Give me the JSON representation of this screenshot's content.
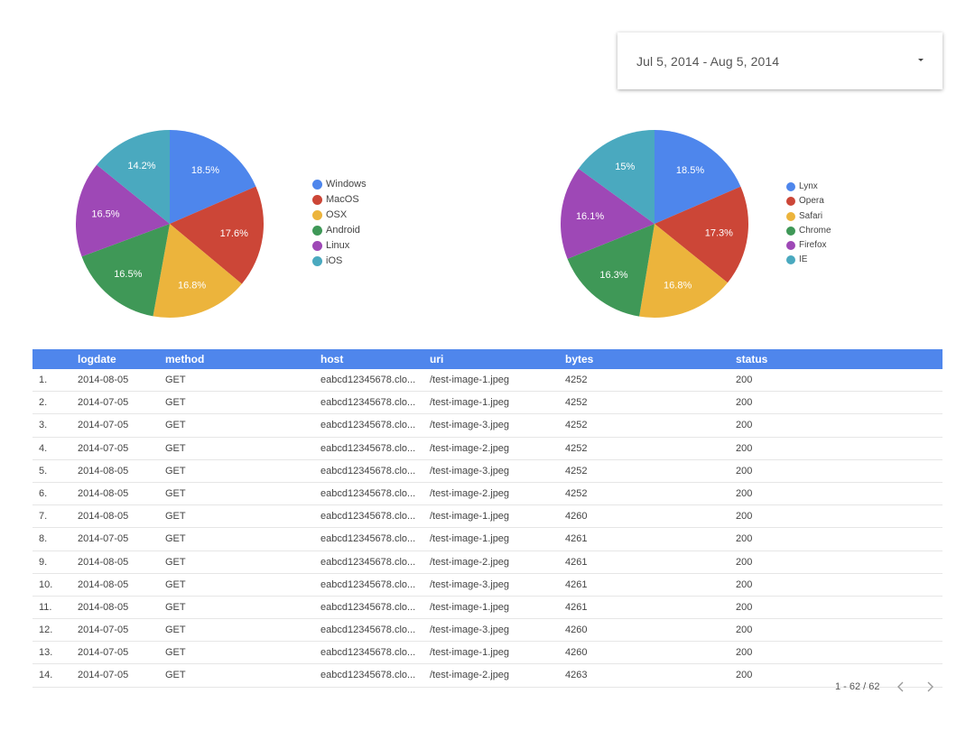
{
  "date_range": {
    "label": "Jul 5, 2014 - Aug 5, 2014"
  },
  "chart_data": [
    {
      "type": "pie",
      "slices": [
        {
          "name": "Windows",
          "value": 18.5,
          "label": "18.5%",
          "color": "#4e86ec"
        },
        {
          "name": "MacOS",
          "value": 17.6,
          "label": "17.6%",
          "color": "#cc4637"
        },
        {
          "name": "OSX",
          "value": 16.8,
          "label": "16.8%",
          "color": "#ecb43c"
        },
        {
          "name": "Android",
          "value": 16.5,
          "label": "16.5%",
          "color": "#3f9857"
        },
        {
          "name": "Linux",
          "value": 16.5,
          "label": "16.5%",
          "color": "#9e48b6"
        },
        {
          "name": "iOS",
          "value": 14.2,
          "label": "14.2%",
          "color": "#4aa9bf"
        }
      ],
      "legend_position": "right"
    },
    {
      "type": "pie",
      "slices": [
        {
          "name": "Lynx",
          "value": 18.5,
          "label": "18.5%",
          "color": "#4e86ec"
        },
        {
          "name": "Opera",
          "value": 17.3,
          "label": "17.3%",
          "color": "#cc4637"
        },
        {
          "name": "Safari",
          "value": 16.8,
          "label": "16.8%",
          "color": "#ecb43c"
        },
        {
          "name": "Chrome",
          "value": 16.3,
          "label": "16.3%",
          "color": "#3f9857"
        },
        {
          "name": "Firefox",
          "value": 16.1,
          "label": "16.1%",
          "color": "#9e48b6"
        },
        {
          "name": "IE",
          "value": 15,
          "label": "15%",
          "color": "#4aa9bf"
        }
      ],
      "legend_position": "right"
    },
    {
      "type": "table",
      "columns": [
        "",
        "logdate",
        "method",
        "host",
        "uri",
        "bytes",
        "status"
      ],
      "rows": [
        [
          "1.",
          "2014-08-05",
          "GET",
          "eabcd12345678.clo...",
          "/test-image-1.jpeg",
          "4252",
          "200"
        ],
        [
          "2.",
          "2014-07-05",
          "GET",
          "eabcd12345678.clo...",
          "/test-image-1.jpeg",
          "4252",
          "200"
        ],
        [
          "3.",
          "2014-07-05",
          "GET",
          "eabcd12345678.clo...",
          "/test-image-3.jpeg",
          "4252",
          "200"
        ],
        [
          "4.",
          "2014-07-05",
          "GET",
          "eabcd12345678.clo...",
          "/test-image-2.jpeg",
          "4252",
          "200"
        ],
        [
          "5.",
          "2014-08-05",
          "GET",
          "eabcd12345678.clo...",
          "/test-image-3.jpeg",
          "4252",
          "200"
        ],
        [
          "6.",
          "2014-08-05",
          "GET",
          "eabcd12345678.clo...",
          "/test-image-2.jpeg",
          "4252",
          "200"
        ],
        [
          "7.",
          "2014-08-05",
          "GET",
          "eabcd12345678.clo...",
          "/test-image-1.jpeg",
          "4260",
          "200"
        ],
        [
          "8.",
          "2014-07-05",
          "GET",
          "eabcd12345678.clo...",
          "/test-image-1.jpeg",
          "4261",
          "200"
        ],
        [
          "9.",
          "2014-08-05",
          "GET",
          "eabcd12345678.clo...",
          "/test-image-2.jpeg",
          "4261",
          "200"
        ],
        [
          "10.",
          "2014-08-05",
          "GET",
          "eabcd12345678.clo...",
          "/test-image-3.jpeg",
          "4261",
          "200"
        ],
        [
          "11.",
          "2014-08-05",
          "GET",
          "eabcd12345678.clo...",
          "/test-image-1.jpeg",
          "4261",
          "200"
        ],
        [
          "12.",
          "2014-07-05",
          "GET",
          "eabcd12345678.clo...",
          "/test-image-3.jpeg",
          "4260",
          "200"
        ],
        [
          "13.",
          "2014-07-05",
          "GET",
          "eabcd12345678.clo...",
          "/test-image-1.jpeg",
          "4260",
          "200"
        ],
        [
          "14.",
          "2014-07-05",
          "GET",
          "eabcd12345678.clo...",
          "/test-image-2.jpeg",
          "4263",
          "200"
        ]
      ]
    }
  ],
  "pagination": {
    "text": "1 - 62 / 62",
    "prev_icon": "chevron-left-icon",
    "next_icon": "chevron-right-icon"
  }
}
